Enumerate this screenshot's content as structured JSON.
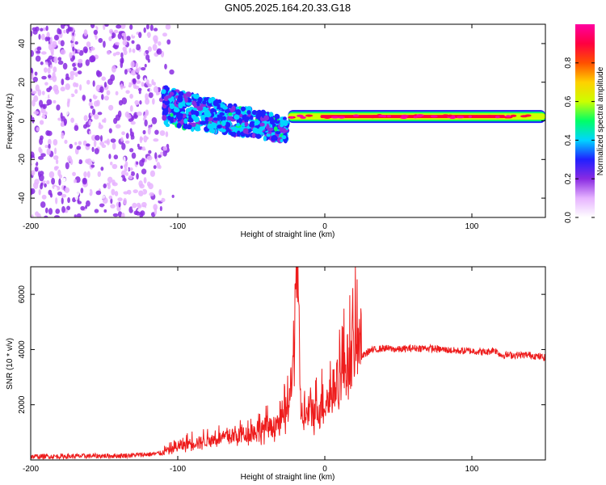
{
  "title": "GN05.2025.164.20.33.G18",
  "chart_data": [
    {
      "type": "heatmap",
      "title": "",
      "xlabel": "Height of straight line (km)",
      "ylabel": "Frequency (Hz)",
      "xlim": [
        -200,
        150
      ],
      "ylim": [
        -50,
        50
      ],
      "xticks": [
        -200,
        -100,
        0,
        100
      ],
      "yticks": [
        -40,
        -20,
        0,
        20,
        40
      ],
      "colorbar": {
        "label": "Normalized spectral amplitude",
        "range": [
          0,
          1
        ],
        "ticks": [
          "0.0",
          "0.2",
          "0.4",
          "0.6",
          "0.8"
        ],
        "colormap": [
          "#ffffff",
          "#e6b3ff",
          "#8a2be2",
          "#2020ff",
          "#00d5ff",
          "#00ff66",
          "#ccff00",
          "#ffd000",
          "#ff5000",
          "#ff0040",
          "#ff00a0"
        ]
      },
      "regions": [
        {
          "x": [
            -200,
            -110
          ],
          "frequency_spread": [
            -50,
            50
          ],
          "amplitude": [
            0.0,
            0.25
          ],
          "description_value": "broadband noise"
        },
        {
          "x": [
            -110,
            -25
          ],
          "frequency_center": [
            8,
            -5
          ],
          "amplitude": [
            0.2,
            0.45
          ]
        },
        {
          "x": [
            -25,
            150
          ],
          "frequency_center": [
            1.5,
            3
          ],
          "amplitude": [
            0.6,
            1.0
          ]
        }
      ]
    },
    {
      "type": "line",
      "title": "",
      "xlabel": "Height of straight line (km)",
      "ylabel": "SNR (10 * v/v)",
      "xlim": [
        -200,
        150
      ],
      "ylim": [
        0,
        7000
      ],
      "xticks": [
        -200,
        -100,
        0,
        100
      ],
      "yticks": [
        2000,
        4000,
        6000
      ],
      "series": [
        {
          "color": "#ee1c1c",
          "x": [
            -200,
            -180,
            -160,
            -140,
            -120,
            -110,
            -100,
            -90,
            -80,
            -70,
            -60,
            -50,
            -40,
            -30,
            -25,
            -22,
            -19,
            -17,
            -15,
            -10,
            -5,
            0,
            5,
            10,
            15,
            20,
            30,
            40,
            50,
            60,
            70,
            80,
            90,
            100,
            110,
            115,
            120,
            130,
            140,
            150
          ],
          "y": [
            120,
            130,
            140,
            150,
            200,
            250,
            400,
            550,
            600,
            700,
            750,
            850,
            1000,
            1100,
            1700,
            2500,
            6800,
            2000,
            1300,
            1400,
            1600,
            1800,
            2100,
            2600,
            3000,
            3500,
            3950,
            4050,
            4000,
            4050,
            4050,
            4000,
            3950,
            3950,
            3900,
            4000,
            3800,
            3800,
            3800,
            3700
          ]
        }
      ]
    }
  ]
}
